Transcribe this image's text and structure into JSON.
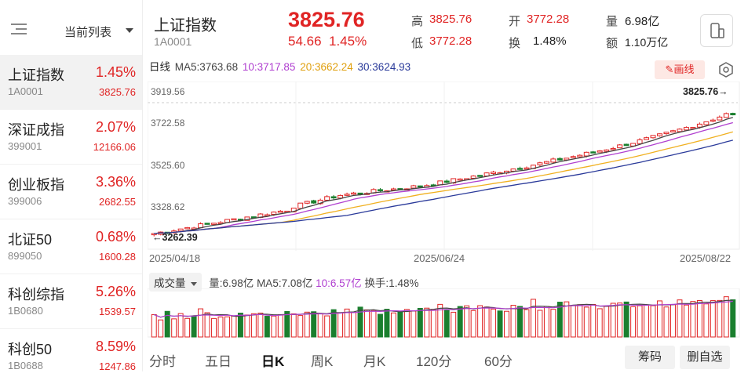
{
  "sidebar": {
    "title": "当前列表",
    "items": [
      {
        "name": "上证指数",
        "code": "1A0001",
        "pct": "1.45%",
        "value": "3825.76"
      },
      {
        "name": "深证成指",
        "code": "399001",
        "pct": "2.07%",
        "value": "12166.06"
      },
      {
        "name": "创业板指",
        "code": "399006",
        "pct": "3.36%",
        "value": "2682.55"
      },
      {
        "name": "北证50",
        "code": "899050",
        "pct": "0.68%",
        "value": "1600.28"
      },
      {
        "name": "科创综指",
        "code": "1B0680",
        "pct": "5.26%",
        "value": "1539.57"
      },
      {
        "name": "科创50",
        "code": "1B0688",
        "pct": "8.59%",
        "value": "1247.86"
      }
    ]
  },
  "quote": {
    "name": "上证指数",
    "code": "1A0001",
    "price": "3825.76",
    "change": "54.66",
    "change_pct": "1.45%",
    "high_label": "高",
    "high": "3825.76",
    "low_label": "低",
    "low": "3772.28",
    "open_label": "开",
    "open": "3772.28",
    "turnover_label": "换",
    "turnover": "1.48%",
    "volume_label": "量",
    "volume": "6.98亿",
    "amount_label": "额",
    "amount": "1.10万亿"
  },
  "chart": {
    "period_label": "日线",
    "ma5": "MA5:3763.68",
    "ma10": "10:3717.85",
    "ma20": "20:3662.24",
    "ma30": "30:3624.93",
    "draw_label": "画线",
    "y_labels": [
      "3919.56",
      "3722.58",
      "3525.60",
      "3328.62"
    ],
    "max_label": "3825.76→",
    "min_label": "←3262.39",
    "dates": [
      "2025/04/18",
      "2025/06/24",
      "2025/08/22"
    ],
    "colors": {
      "up": "#e02424",
      "down": "#1a7f2e",
      "ma5": "#444444",
      "ma10": "#b040d0",
      "ma20": "#f0b020",
      "ma30": "#2a3a9a"
    }
  },
  "volume": {
    "selector": "成交量",
    "vol": "量:6.98亿",
    "ma5": "MA5:7.08亿",
    "ma10": "10:6.57亿",
    "turnover": "换手:1.48%"
  },
  "tabs": [
    "分时",
    "五日",
    "日K",
    "周K",
    "月K",
    "120分",
    "60分"
  ],
  "active_tab": "日K",
  "buttons": {
    "chips": "筹码",
    "remove": "删自选"
  }
}
